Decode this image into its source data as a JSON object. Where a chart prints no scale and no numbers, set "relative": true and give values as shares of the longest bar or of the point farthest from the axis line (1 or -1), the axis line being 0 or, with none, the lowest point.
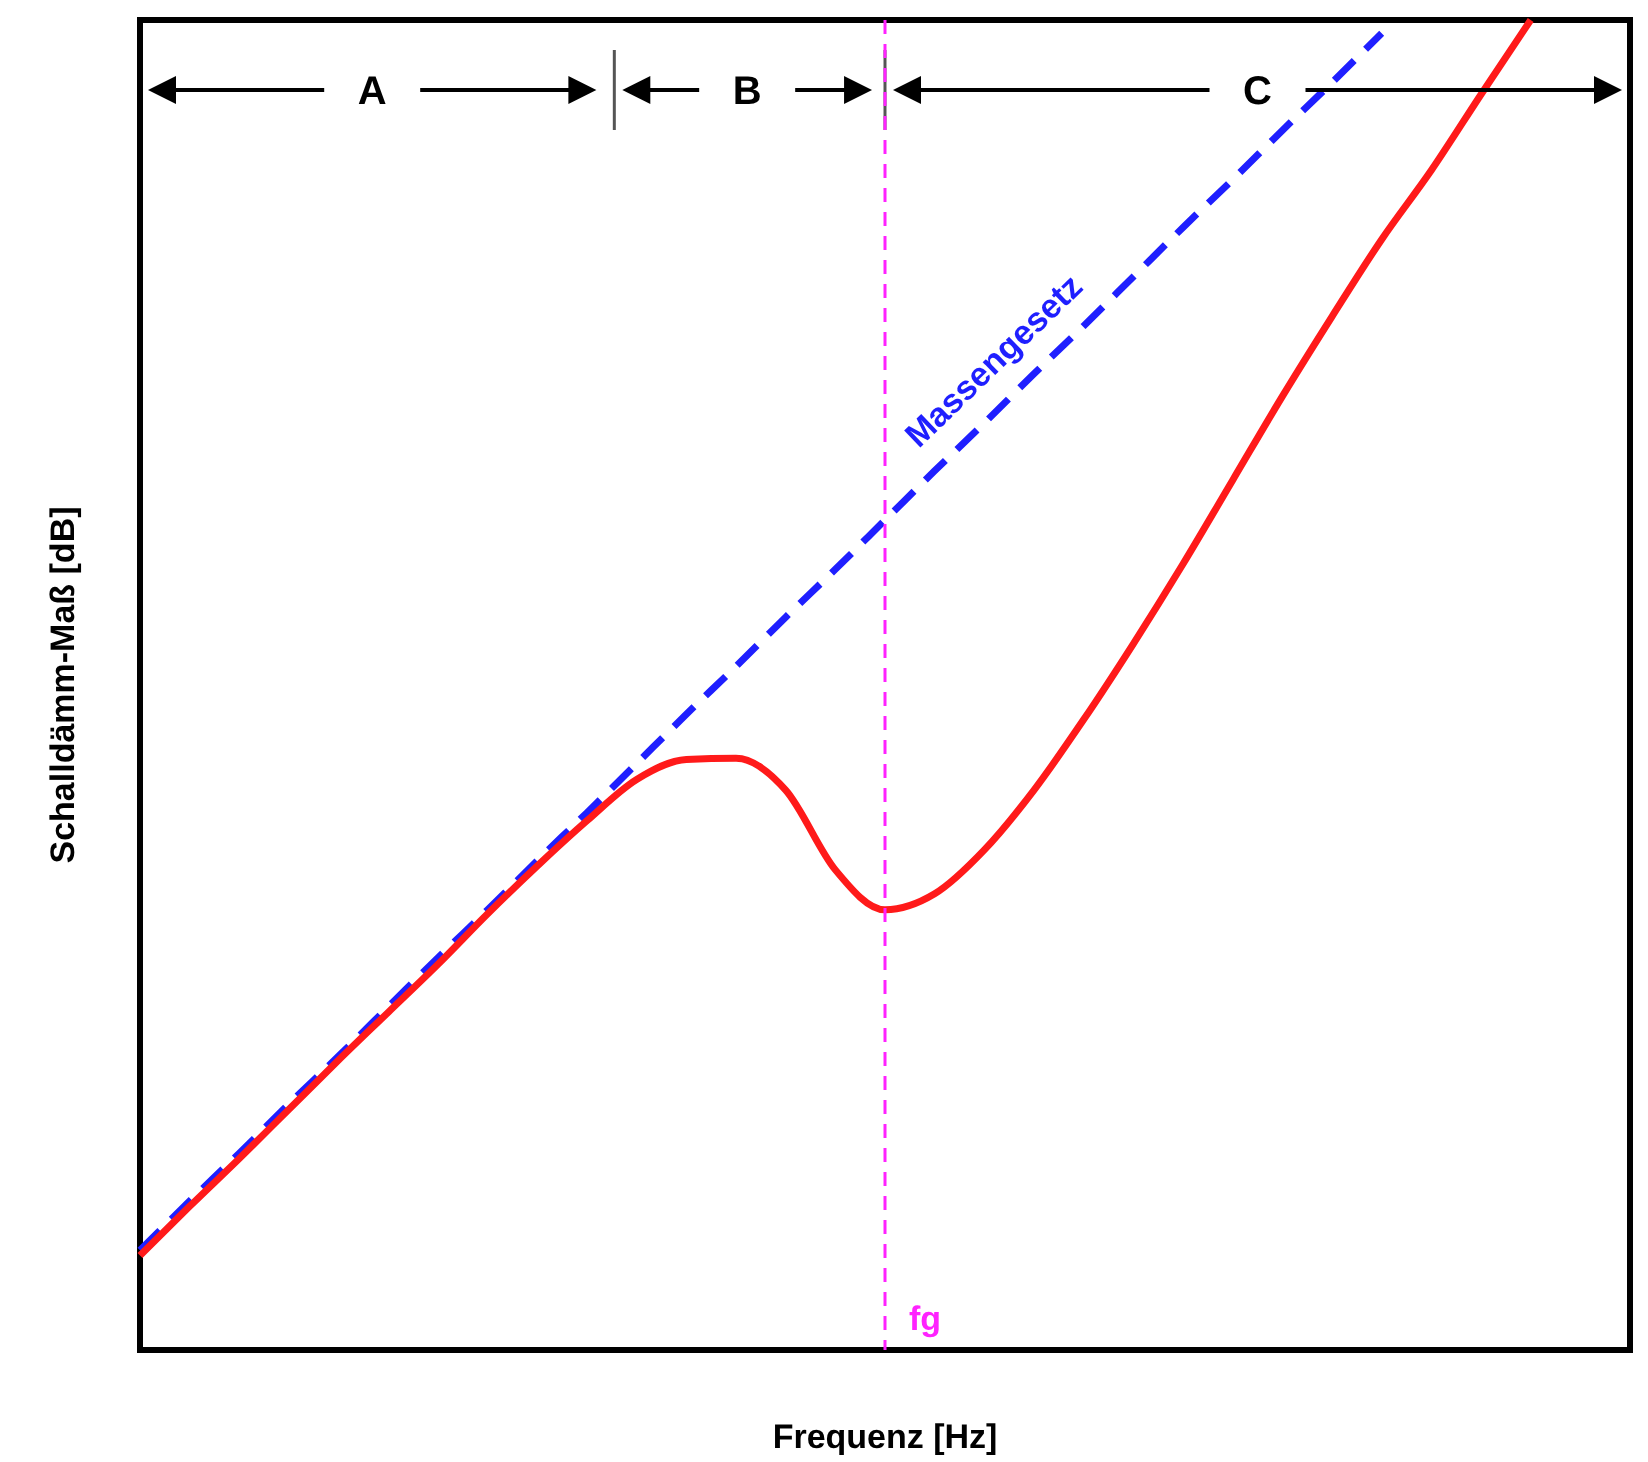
{
  "chart_data": {
    "type": "line",
    "relative": true,
    "xlabel": "Frequenz  [Hz]",
    "ylabel": "Schalldämm-Maß [dB]",
    "categories": [
      null,
      null,
      null,
      null,
      null,
      null,
      null,
      null,
      null,
      null,
      null,
      null,
      null,
      null,
      null,
      null,
      null,
      null,
      null,
      null,
      null,
      null,
      null,
      null,
      null,
      null,
      null,
      null,
      null,
      null,
      null
    ],
    "series": [
      {
        "name": "Massengesetz",
        "color": "#1f1fff",
        "line_style": "dashed",
        "values": [
          0.075,
          0.112,
          0.148,
          0.185,
          0.221,
          0.258,
          0.295,
          0.331,
          0.368,
          0.404,
          0.441,
          0.478,
          0.514,
          0.551,
          0.587,
          0.624,
          0.661,
          0.697,
          0.734,
          0.77,
          0.807,
          0.844,
          0.88,
          0.917,
          0.953,
          0.99,
          null,
          null,
          null,
          null,
          null
        ]
      },
      {
        "color": "#ff1a1a",
        "line_style": "solid",
        "values": [
          0.071,
          0.108,
          0.144,
          0.181,
          0.218,
          0.254,
          0.29,
          0.328,
          0.364,
          0.398,
          0.429,
          0.444,
          0.445,
          0.421,
          0.361,
          0.331,
          0.343,
          0.376,
          0.421,
          0.474,
          0.531,
          0.591,
          0.654,
          0.717,
          0.777,
          0.835,
          0.887,
          0.944,
          1.0,
          null,
          null
        ]
      }
    ],
    "annotations": [
      "A",
      "B",
      "C",
      "fg"
    ]
  }
}
